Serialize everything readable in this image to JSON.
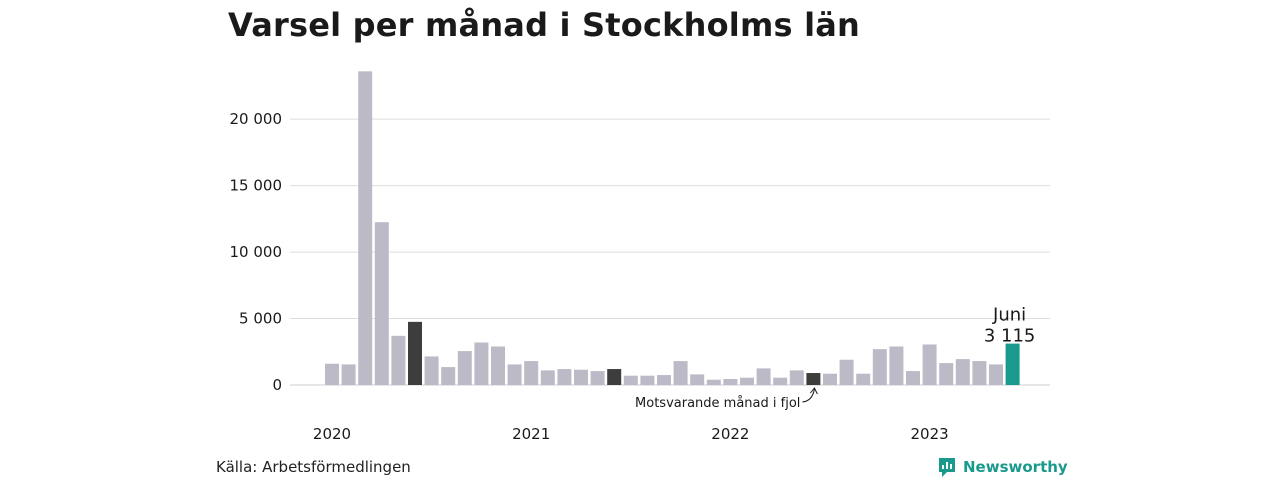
{
  "title": "Varsel per månad i Stockholms län",
  "source": "Källa: Arbetsförmedlingen",
  "brand": {
    "name": "Newsworthy",
    "color": "#1a9a8c",
    "icon": "newsworthy-logo-icon"
  },
  "colors": {
    "default": "#bdbac8",
    "highlight": "#3d3d3d",
    "current": "#1a9a8c",
    "grid": "#dddddd"
  },
  "annotations": {
    "current_month": "Juni",
    "current_value": "3 115",
    "previous_year_label": "Motsvarande månad i fjol"
  },
  "chart_data": {
    "type": "bar",
    "title": "Varsel per månad i Stockholms län",
    "ylim": [
      0,
      24000
    ],
    "yticks": [
      0,
      5000,
      10000,
      15000,
      20000
    ],
    "ytick_labels": [
      "0",
      "5 000",
      "10 000",
      "15 000",
      "20 000"
    ],
    "grid": true,
    "year_labels": [
      "2020",
      "2021",
      "2022",
      "2023"
    ],
    "year_start_index": [
      0,
      12,
      24,
      36
    ],
    "values": [
      1600,
      1550,
      23600,
      12250,
      3700,
      4750,
      2150,
      1350,
      2550,
      3200,
      2900,
      1550,
      1800,
      1100,
      1200,
      1150,
      1050,
      1200,
      700,
      700,
      750,
      1800,
      800,
      400,
      450,
      550,
      1250,
      550,
      1100,
      900,
      850,
      1900,
      850,
      2700,
      2900,
      1050,
      3050,
      1650,
      1950,
      1800,
      1550,
      3115
    ],
    "highlight_indices": [
      5,
      17,
      29
    ],
    "current_index": 41
  }
}
